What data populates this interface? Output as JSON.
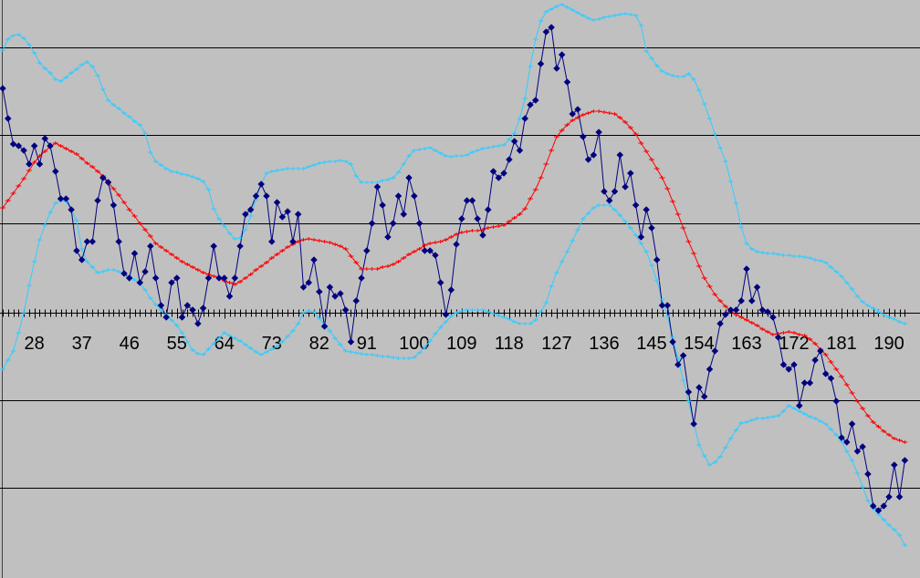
{
  "chart_data": {
    "type": "line",
    "categories": [
      null,
      null,
      null,
      null,
      null,
      null,
      "28",
      null,
      null,
      null,
      null,
      null,
      null,
      null,
      null,
      "37",
      null,
      null,
      null,
      null,
      null,
      null,
      null,
      null,
      "46",
      null,
      null,
      null,
      null,
      null,
      null,
      null,
      null,
      "55",
      null,
      null,
      null,
      null,
      null,
      null,
      null,
      null,
      "64",
      null,
      null,
      null,
      null,
      null,
      null,
      null,
      null,
      "73",
      null,
      null,
      null,
      null,
      null,
      null,
      null,
      null,
      "82",
      null,
      null,
      null,
      null,
      null,
      null,
      null,
      null,
      "91",
      null,
      null,
      null,
      null,
      null,
      null,
      null,
      null,
      "100",
      null,
      null,
      null,
      null,
      null,
      null,
      null,
      null,
      "109",
      null,
      null,
      null,
      null,
      null,
      null,
      null,
      null,
      "118",
      null,
      null,
      null,
      null,
      null,
      null,
      null,
      null,
      "127",
      null,
      null,
      null,
      null,
      null,
      null,
      null,
      null,
      "136",
      null,
      null,
      null,
      null,
      null,
      null,
      null,
      null,
      "145",
      null,
      null,
      null,
      null,
      null,
      null,
      null,
      null,
      "154",
      null,
      null,
      null,
      null,
      null,
      null,
      null,
      null,
      "163",
      null,
      null,
      null,
      null,
      null,
      null,
      null,
      null,
      "172",
      null,
      null,
      null,
      null,
      null,
      null,
      null,
      null,
      "181",
      null,
      null,
      null,
      null,
      null,
      null,
      null,
      null,
      "190",
      null,
      null,
      null
    ],
    "ylim": [
      -291,
      343
    ],
    "gridlines": [
      291,
      195,
      98,
      -96,
      -192
    ],
    "series": [
      {
        "color": "#33ccff",
        "marker": "plus",
        "values": [
          288,
          300,
          304,
          305,
          301,
          294,
          285,
          274,
          268,
          263,
          256,
          254,
          258,
          263,
          267,
          272,
          275,
          270,
          260,
          245,
          233,
          228,
          224,
          219,
          215,
          210,
          206,
          197,
          176,
          166,
          162,
          158,
          155,
          154,
          152,
          151,
          149,
          147,
          144,
          135,
          114,
          103,
          95,
          87,
          81,
          82,
          91,
          106,
          124,
          141,
          153,
          155,
          156,
          157,
          158,
          158,
          158,
          158,
          160,
          162,
          164,
          165,
          166,
          166,
          167,
          166,
          163,
          150,
          143,
          143,
          143,
          143,
          145,
          146,
          148,
          154,
          163,
          172,
          178,
          179,
          180,
          181,
          178,
          175,
          172,
          171,
          172,
          172,
          173,
          176,
          178,
          180,
          181,
          182,
          183,
          184,
          190,
          197,
          213,
          235,
          270,
          300,
          320,
          330,
          333,
          336,
          338,
          335,
          332,
          329,
          326,
          323,
          321,
          322,
          324,
          325,
          326,
          327,
          328,
          327,
          326,
          315,
          287,
          279,
          271,
          265,
          262,
          260,
          259,
          259,
          262,
          256,
          244,
          229,
          213,
          196,
          181,
          166,
          144,
          120,
          94,
          76,
          70,
          67,
          66,
          65,
          65,
          64,
          63,
          63,
          62,
          62,
          61,
          60,
          58,
          57,
          55,
          50,
          45,
          40,
          33,
          26,
          18,
          12,
          8,
          5,
          1,
          -2,
          -5,
          -7,
          -10,
          -12
        ]
      },
      {
        "color": "#33ccff",
        "marker": "plus",
        "values": [
          -62,
          -52,
          -42,
          -22,
          0,
          30,
          56,
          80,
          96,
          110,
          120,
          124,
          122,
          113,
          101,
          70,
          56,
          50,
          44,
          45,
          47,
          47,
          45,
          43,
          40,
          36,
          32,
          25,
          16,
          9,
          3,
          -2,
          -8,
          -14,
          -22,
          -32,
          -41,
          -45,
          -46,
          -40,
          -34,
          -28,
          -22,
          -25,
          -28,
          -31,
          -35,
          -39,
          -43,
          -46,
          -43,
          -40,
          -37,
          -32,
          -26,
          -20,
          -12,
          0,
          2,
          1,
          -6,
          -13,
          -20,
          -28,
          -35,
          -42,
          -43,
          -44,
          -45,
          -46,
          -46,
          -47,
          -48,
          -48,
          -49,
          -50,
          -50,
          -50,
          -49,
          -44,
          -38,
          -31,
          -23,
          -16,
          -10,
          -4,
          0,
          2,
          3,
          3,
          3,
          3,
          1,
          -1,
          -3,
          -5,
          -7,
          -10,
          -12,
          -12,
          -12,
          -8,
          1,
          11,
          29,
          44,
          56,
          67,
          79,
          91,
          103,
          109,
          115,
          118,
          118,
          118,
          113,
          107,
          100,
          93,
          85,
          76,
          67,
          52,
          35,
          15,
          -4,
          -27,
          -50,
          -74,
          -97,
          -121,
          -145,
          -157,
          -167,
          -164,
          -158,
          -148,
          -138,
          -129,
          -121,
          -120,
          -118,
          -116,
          -116,
          -115,
          -114,
          -113,
          -108,
          -102,
          -105,
          -108,
          -111,
          -114,
          -116,
          -119,
          -122,
          -128,
          -134,
          -141,
          -152,
          -162,
          -176,
          -191,
          -206,
          -215,
          -221,
          -227,
          -233,
          -238,
          -244,
          -255
        ]
      },
      {
        "color": "#ff0000",
        "marker": "plus",
        "values": [
          115,
          123,
          131,
          139,
          147,
          156,
          165,
          172,
          177,
          182,
          186,
          183,
          180,
          177,
          174,
          169,
          164,
          160,
          155,
          150,
          143,
          136,
          129,
          121,
          113,
          106,
          98,
          91,
          84,
          76,
          72,
          68,
          64,
          60,
          56,
          53,
          50,
          47,
          44,
          42,
          40,
          38,
          35,
          33,
          31,
          34,
          38,
          42,
          47,
          51,
          55,
          60,
          64,
          68,
          72,
          75,
          78,
          80,
          81,
          80,
          79,
          78,
          77,
          75,
          73,
          70,
          62,
          55,
          48,
          48,
          48,
          48,
          50,
          51,
          53,
          56,
          60,
          64,
          67,
          70,
          74,
          76,
          77,
          78,
          80,
          83,
          86,
          88,
          89,
          90,
          90,
          91,
          93,
          94,
          95,
          96,
          100,
          104,
          108,
          114,
          125,
          135,
          148,
          163,
          178,
          193,
          200,
          206,
          211,
          214,
          217,
          219,
          221,
          221,
          220,
          219,
          218,
          214,
          209,
          203,
          196,
          186,
          177,
          168,
          158,
          148,
          136,
          122,
          108,
          93,
          78,
          65,
          51,
          38,
          29,
          20,
          13,
          7,
          2,
          -2,
          -5,
          -8,
          -11,
          -14,
          -18,
          -21,
          -24,
          -23,
          -22,
          -21,
          -22,
          -24,
          -25,
          -29,
          -34,
          -40,
          -46,
          -54,
          -62,
          -70,
          -79,
          -88,
          -97,
          -105,
          -113,
          -120,
          -125,
          -130,
          -134,
          -138,
          -140,
          -142
        ]
      },
      {
        "color": "#000080",
        "marker": "diamond",
        "values": [
          246,
          213,
          185,
          183,
          178,
          163,
          183,
          163,
          191,
          183,
          155,
          125,
          125,
          113,
          68,
          58,
          78,
          78,
          123,
          148,
          143,
          118,
          78,
          43,
          38,
          65,
          33,
          45,
          73,
          38,
          8,
          -5,
          33,
          38,
          -5,
          8,
          3,
          -12,
          5,
          38,
          73,
          38,
          38,
          18,
          38,
          73,
          108,
          113,
          128,
          141,
          128,
          78,
          121,
          105,
          111,
          78,
          108,
          28,
          33,
          58,
          23,
          -15,
          28,
          18,
          21,
          3,
          -32,
          13,
          38,
          68,
          98,
          138,
          118,
          83,
          98,
          128,
          108,
          148,
          128,
          98,
          68,
          68,
          63,
          33,
          -2,
          25,
          75,
          103,
          123,
          123,
          103,
          85,
          113,
          155,
          148,
          153,
          168,
          188,
          178,
          213,
          228,
          233,
          273,
          308,
          313,
          268,
          283,
          253,
          218,
          223,
          193,
          168,
          173,
          198,
          133,
          123,
          133,
          173,
          138,
          153,
          118,
          83,
          113,
          93,
          58,
          8,
          8,
          -32,
          -57,
          -47,
          -87,
          -122,
          -82,
          -92,
          -62,
          -42,
          -12,
          -2,
          3,
          3,
          13,
          48,
          13,
          28,
          3,
          1,
          -5,
          -27,
          -57,
          -62,
          -57,
          -102,
          -77,
          -77,
          -52,
          -42,
          -67,
          -72,
          -97,
          -137,
          -142,
          -122,
          -152,
          -147,
          -177,
          -212,
          -217,
          -212,
          -202,
          -167,
          -202,
          -162
        ]
      }
    ]
  }
}
